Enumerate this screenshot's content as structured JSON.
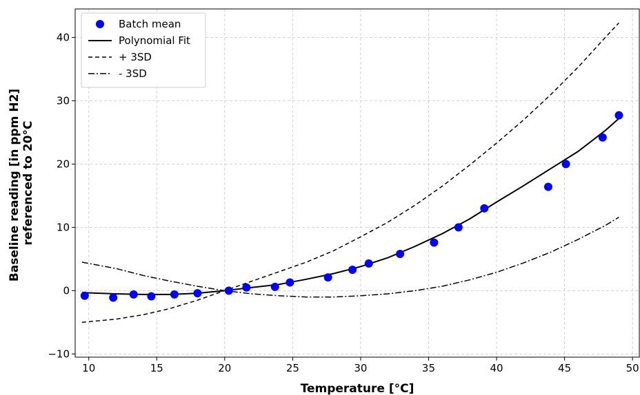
{
  "chart_data": {
    "type": "scatter",
    "title": "",
    "xlabel": "Temperature [°C]",
    "ylabel_lines": [
      "Baseline reading [in ppm H2]",
      "referenced to 20°C"
    ],
    "xlim": [
      9,
      50.5
    ],
    "ylim": [
      -10.5,
      44.5
    ],
    "xticks": [
      10,
      15,
      20,
      25,
      30,
      35,
      40,
      45,
      50
    ],
    "yticks": [
      -10,
      0,
      10,
      20,
      30,
      40
    ],
    "grid": true,
    "legend_position": "top-left",
    "series": [
      {
        "name": "Batch mean",
        "kind": "markers",
        "color": "#0000ff",
        "points": [
          [
            9.7,
            -0.8
          ],
          [
            11.8,
            -1.1
          ],
          [
            13.3,
            -0.6
          ],
          [
            14.6,
            -0.9
          ],
          [
            16.3,
            -0.6
          ],
          [
            18.0,
            -0.4
          ],
          [
            20.3,
            0.0
          ],
          [
            21.6,
            0.5
          ],
          [
            23.7,
            0.6
          ],
          [
            24.8,
            1.3
          ],
          [
            27.6,
            2.1
          ],
          [
            29.4,
            3.3
          ],
          [
            30.6,
            4.3
          ],
          [
            32.9,
            5.8
          ],
          [
            35.4,
            7.6
          ],
          [
            37.2,
            10.0
          ],
          [
            39.1,
            13.0
          ],
          [
            43.8,
            16.4
          ],
          [
            45.1,
            20.0
          ],
          [
            47.8,
            24.2
          ],
          [
            49.0,
            27.7
          ]
        ]
      },
      {
        "name": "Polynomial Fit",
        "kind": "line",
        "dash": "solid",
        "color": "#000000",
        "points": [
          [
            9.5,
            -0.3
          ],
          [
            12,
            -0.5
          ],
          [
            14,
            -0.6
          ],
          [
            16,
            -0.6
          ],
          [
            18,
            -0.4
          ],
          [
            20,
            0.0
          ],
          [
            22,
            0.5
          ],
          [
            24,
            1.0
          ],
          [
            26,
            1.8
          ],
          [
            28,
            2.7
          ],
          [
            30,
            3.8
          ],
          [
            32,
            5.2
          ],
          [
            34,
            7.0
          ],
          [
            36,
            9.0
          ],
          [
            38,
            11.3
          ],
          [
            40,
            14.0
          ],
          [
            42,
            16.6
          ],
          [
            44,
            19.3
          ],
          [
            46,
            22.0
          ],
          [
            48,
            25.3
          ],
          [
            49,
            27.2
          ]
        ]
      },
      {
        "name": "+ 3SD",
        "kind": "line",
        "dash": "dashed",
        "color": "#000000",
        "points": [
          [
            9.5,
            -5.0
          ],
          [
            12,
            -4.5
          ],
          [
            14,
            -3.8
          ],
          [
            16,
            -2.8
          ],
          [
            18,
            -1.5
          ],
          [
            20,
            0.0
          ],
          [
            22,
            1.5
          ],
          [
            24,
            3.0
          ],
          [
            26,
            4.5
          ],
          [
            28,
            6.3
          ],
          [
            30,
            8.5
          ],
          [
            32,
            10.8
          ],
          [
            34,
            13.5
          ],
          [
            36,
            16.5
          ],
          [
            38,
            19.8
          ],
          [
            40,
            23.3
          ],
          [
            42,
            27.0
          ],
          [
            44,
            31.0
          ],
          [
            46,
            35.3
          ],
          [
            48,
            40.0
          ],
          [
            49,
            42.3
          ]
        ]
      },
      {
        "name": "- 3SD",
        "kind": "line",
        "dash": "dashdot",
        "color": "#000000",
        "points": [
          [
            9.5,
            4.5
          ],
          [
            12,
            3.5
          ],
          [
            14,
            2.4
          ],
          [
            16,
            1.5
          ],
          [
            18,
            0.7
          ],
          [
            20,
            0.0
          ],
          [
            22,
            -0.5
          ],
          [
            24,
            -0.8
          ],
          [
            26,
            -1.0
          ],
          [
            28,
            -1.0
          ],
          [
            30,
            -0.8
          ],
          [
            32,
            -0.5
          ],
          [
            34,
            0.0
          ],
          [
            36,
            0.7
          ],
          [
            38,
            1.7
          ],
          [
            40,
            2.9
          ],
          [
            42,
            4.4
          ],
          [
            44,
            6.1
          ],
          [
            46,
            8.1
          ],
          [
            48,
            10.3
          ],
          [
            49,
            11.6
          ]
        ]
      }
    ]
  }
}
